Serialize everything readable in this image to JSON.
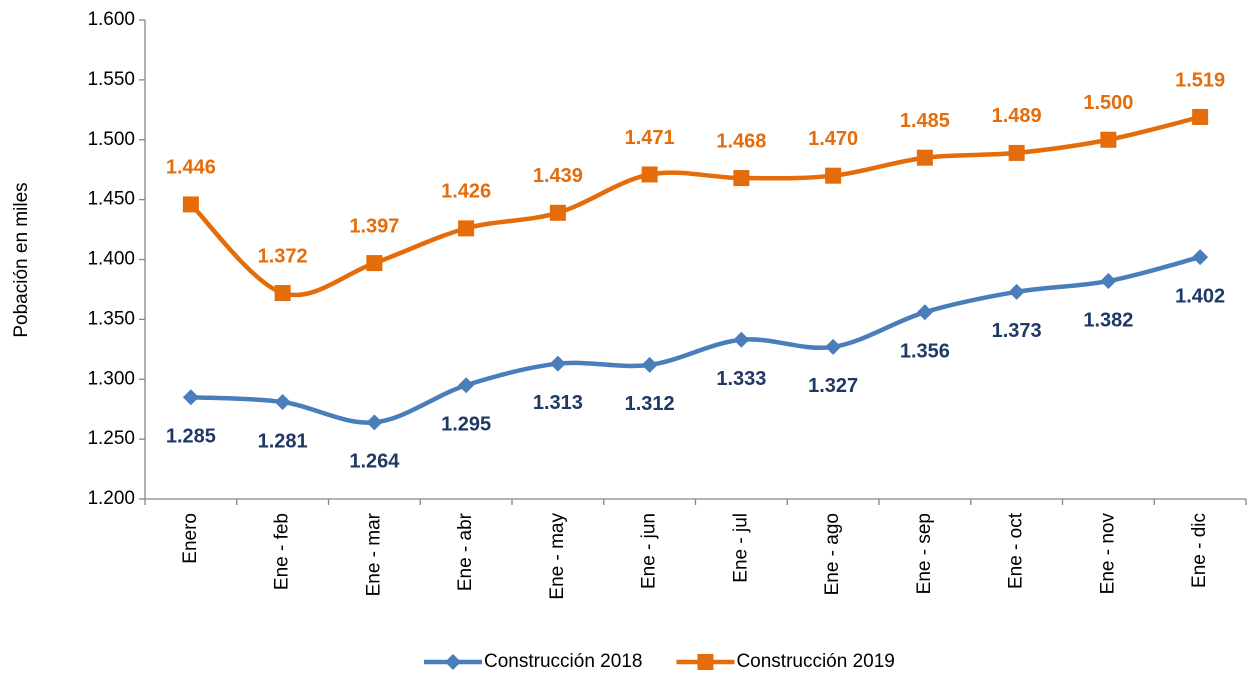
{
  "chart_data": {
    "type": "line",
    "y_label": "Pobación en miles",
    "categories": [
      "Enero",
      "Ene - feb",
      "Ene - mar",
      "Ene - abr",
      "Ene - may",
      "Ene - jun",
      "Ene - jul",
      "Ene - ago",
      "Ene - sep",
      "Ene - oct",
      "Ene - nov",
      "Ene - dic"
    ],
    "series": [
      {
        "name": "Construcción 2018",
        "color": "#4a7ebb",
        "label_color": "#1f3864",
        "marker": "diamond",
        "label_position": "below",
        "values": [
          1285,
          1281,
          1264,
          1295,
          1313,
          1312,
          1333,
          1327,
          1356,
          1373,
          1382,
          1402
        ],
        "value_labels": [
          "1.285",
          "1.281",
          "1.264",
          "1.295",
          "1.313",
          "1.312",
          "1.333",
          "1.327",
          "1.356",
          "1.373",
          "1.382",
          "1.402"
        ]
      },
      {
        "name": "Construcción 2019",
        "color": "#e46c0a",
        "label_color": "#e46c0a",
        "marker": "square",
        "label_position": "above",
        "values": [
          1446,
          1372,
          1397,
          1426,
          1439,
          1471,
          1468,
          1470,
          1485,
          1489,
          1500,
          1519
        ],
        "value_labels": [
          "1.446",
          "1.372",
          "1.397",
          "1.426",
          "1.439",
          "1.471",
          "1.468",
          "1.470",
          "1.485",
          "1.489",
          "1.500",
          "1.519"
        ]
      }
    ],
    "ylim": [
      1200,
      1600
    ],
    "yticks": [
      {
        "value": 1200,
        "label": "1.200"
      },
      {
        "value": 1250,
        "label": "1.250"
      },
      {
        "value": 1300,
        "label": "1.300"
      },
      {
        "value": 1350,
        "label": "1.350"
      },
      {
        "value": 1400,
        "label": "1.400"
      },
      {
        "value": 1450,
        "label": "1.450"
      },
      {
        "value": 1500,
        "label": "1.500"
      },
      {
        "value": 1550,
        "label": "1.550"
      },
      {
        "value": 1600,
        "label": "1.600"
      }
    ],
    "legend": "bottom",
    "grid": false
  }
}
